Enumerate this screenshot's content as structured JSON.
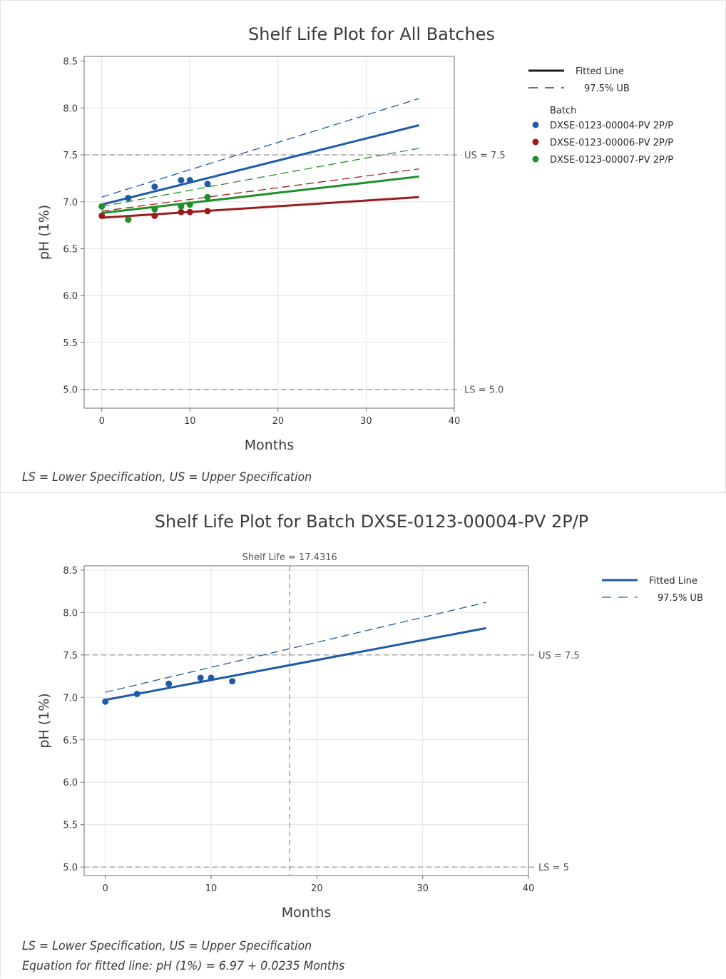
{
  "chart_data": [
    {
      "type": "scatter",
      "title": "Shelf Life Plot for All Batches",
      "xlabel": "Months",
      "ylabel": "pH (1%)",
      "xlim": [
        -2,
        40
      ],
      "ylim": [
        4.8,
        8.55
      ],
      "xticks": [
        0,
        10,
        20,
        30,
        40
      ],
      "yticks": [
        5.0,
        5.5,
        6.0,
        6.5,
        7.0,
        7.5,
        8.0,
        8.5
      ],
      "grid": true,
      "reference_lines": [
        {
          "axis": "y",
          "value": 7.5,
          "label": "US = 7.5"
        },
        {
          "axis": "y",
          "value": 5.0,
          "label": "LS = 5.0"
        }
      ],
      "legend": {
        "placement": "right",
        "line_entries": [
          "Fitted Line",
          "97.5% UB"
        ],
        "group_title": "Batch"
      },
      "series": [
        {
          "name": "DXSE-0123-00004-PV 2P/P",
          "color": "#1f5aa6",
          "x": [
            0,
            3,
            6,
            9,
            10,
            12
          ],
          "y": [
            6.95,
            7.04,
            7.16,
            7.23,
            7.23,
            7.19
          ],
          "fit": {
            "intercept": 6.97,
            "slope": 0.0235
          },
          "ub": {
            "at_0": 7.05,
            "at_36": 8.1
          }
        },
        {
          "name": "DXSE-0123-00006-PV 2P/P",
          "color": "#9b1c1c",
          "x": [
            0,
            3,
            6,
            9,
            10,
            12
          ],
          "y": [
            6.85,
            6.81,
            6.85,
            6.89,
            6.89,
            6.9
          ],
          "fit": {
            "intercept": 6.83,
            "slope": 0.0061
          },
          "ub": {
            "at_0": 6.9,
            "at_36": 7.35
          }
        },
        {
          "name": "DXSE-0123-00007-PV 2P/P",
          "color": "#1f8f2a",
          "x": [
            0,
            3,
            6,
            9,
            10,
            12
          ],
          "y": [
            6.95,
            6.81,
            6.92,
            6.95,
            6.97,
            7.05
          ],
          "fit": {
            "intercept": 6.88,
            "slope": 0.0108
          },
          "ub": {
            "at_0": 6.95,
            "at_36": 7.57
          }
        }
      ],
      "footnote": "LS = Lower Specification, US = Upper Specification"
    },
    {
      "type": "scatter",
      "title": "Shelf Life Plot for Batch DXSE-0123-00004-PV 2P/P",
      "subtitle": "Shelf Life = 17.4316",
      "shelf_life": 17.4316,
      "xlabel": "Months",
      "ylabel": "pH (1%)",
      "xlim": [
        -2,
        40
      ],
      "ylim": [
        4.9,
        8.55
      ],
      "xticks": [
        0,
        10,
        20,
        30,
        40
      ],
      "yticks": [
        5.0,
        5.5,
        6.0,
        6.5,
        7.0,
        7.5,
        8.0,
        8.5
      ],
      "grid": true,
      "reference_lines": [
        {
          "axis": "y",
          "value": 7.5,
          "label": "US = 7.5"
        },
        {
          "axis": "y",
          "value": 5.0,
          "label": "LS = 5"
        }
      ],
      "legend": {
        "placement": "right",
        "line_entries": [
          "Fitted Line",
          "97.5% UB"
        ]
      },
      "series": [
        {
          "color": "#1f5aa6",
          "x": [
            0,
            3,
            6,
            9,
            10,
            12
          ],
          "y": [
            6.95,
            7.04,
            7.16,
            7.23,
            7.23,
            7.19
          ],
          "fit": {
            "intercept": 6.97,
            "slope": 0.0235
          },
          "ub": {
            "at_0": 7.06,
            "at_36": 8.12
          }
        }
      ],
      "footnote": "LS = Lower Specification, US = Upper Specification",
      "equation": "Equation for fitted line: pH (1%) = 6.97 + 0.0235 Months"
    }
  ]
}
